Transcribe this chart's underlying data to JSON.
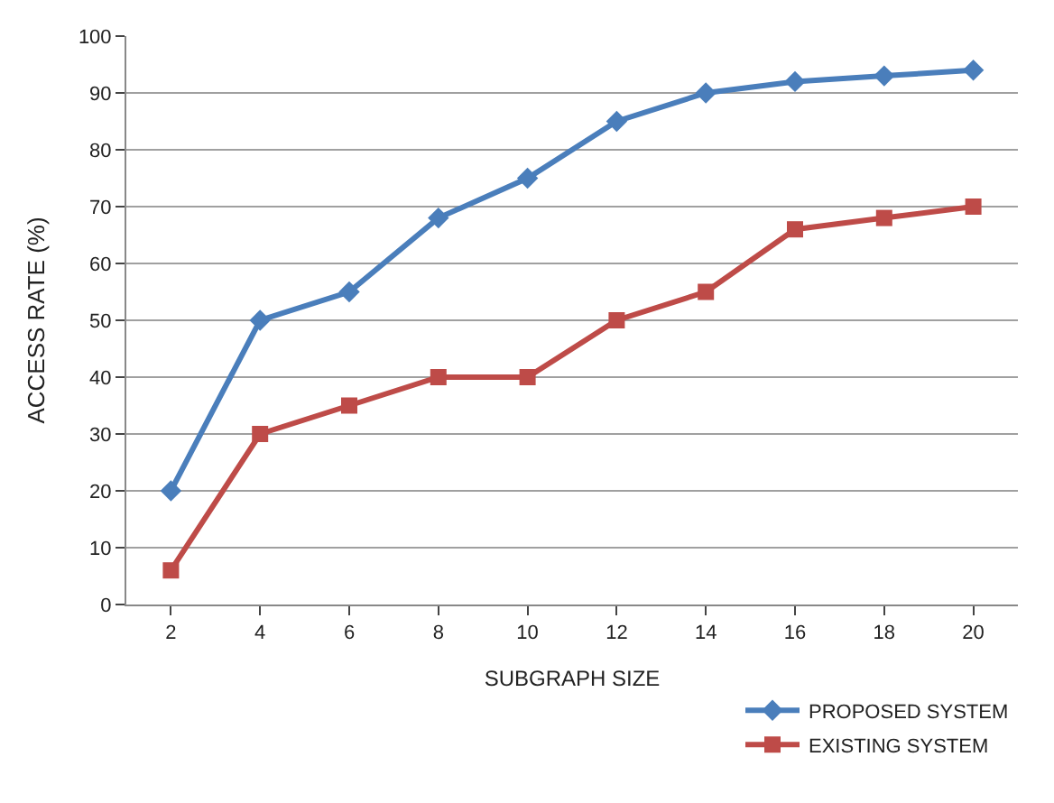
{
  "chart_data": {
    "type": "line",
    "xlabel": "SUBGRAPH SIZE",
    "ylabel": "ACCESS RATE (%)",
    "categories": [
      "2",
      "4",
      "6",
      "8",
      "10",
      "12",
      "14",
      "16",
      "18",
      "20"
    ],
    "series": [
      {
        "name": "PROPOSED SYSTEM",
        "color": "#4a7ebb",
        "marker": "diamond",
        "values": [
          20,
          50,
          55,
          68,
          75,
          85,
          90,
          92,
          93,
          94
        ]
      },
      {
        "name": "EXISTING SYSTEM",
        "color": "#be4b48",
        "marker": "square",
        "values": [
          6,
          30,
          35,
          40,
          40,
          50,
          55,
          66,
          68,
          70
        ]
      }
    ],
    "ylim": [
      0,
      100
    ],
    "yticks": [
      0,
      10,
      20,
      30,
      40,
      50,
      60,
      70,
      80,
      90,
      100
    ],
    "grid": "y",
    "legend": "bottom right",
    "line_style": "solid"
  }
}
